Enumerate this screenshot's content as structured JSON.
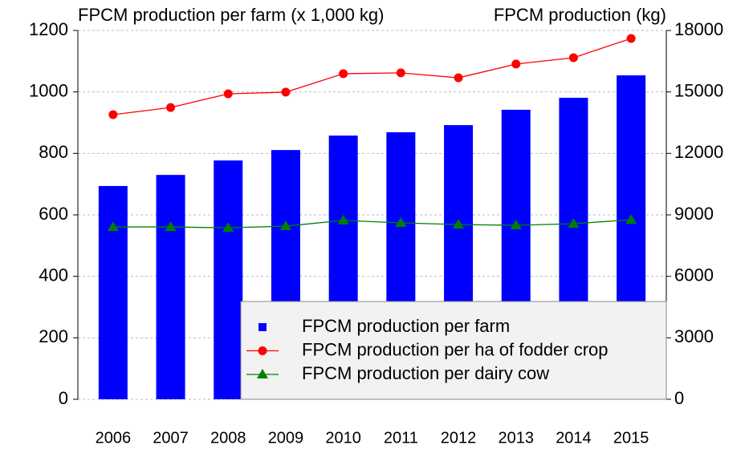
{
  "chart_data": {
    "type": "bar-line",
    "y_axis_label": "FPCM production per farm (x 1,000 kg)",
    "y2_axis_label": "FPCM production (kg)",
    "categories": [
      "2006",
      "2007",
      "2008",
      "2009",
      "2010",
      "2011",
      "2012",
      "2013",
      "2014",
      "2015"
    ],
    "series": [
      {
        "name": "FPCM production per farm",
        "type": "bar",
        "color": "#0000ff",
        "axis": "y",
        "values": [
          694,
          730,
          777,
          811,
          858,
          869,
          892,
          942,
          981,
          1054
        ]
      },
      {
        "name": "FPCM production per ha of fodder crop",
        "type": "line",
        "marker": "circle",
        "color": "#ff0000",
        "axis": "y2",
        "values": [
          13890,
          14240,
          14910,
          14990,
          15890,
          15930,
          15690,
          16360,
          16670,
          17610
        ]
      },
      {
        "name": "FPCM production per dairy cow",
        "type": "line",
        "marker": "triangle",
        "color": "#008000",
        "axis": "y2",
        "values": [
          8410,
          8410,
          8370,
          8450,
          8730,
          8610,
          8530,
          8490,
          8570,
          8760
        ]
      }
    ],
    "ylim": [
      0,
      1200
    ],
    "yticks": [
      0,
      200,
      400,
      600,
      800,
      1000,
      1200
    ],
    "y2lim": [
      0,
      18000
    ],
    "y2ticks": [
      0,
      3000,
      6000,
      9000,
      12000,
      15000,
      18000
    ],
    "grid": true,
    "legend": "lower right"
  }
}
